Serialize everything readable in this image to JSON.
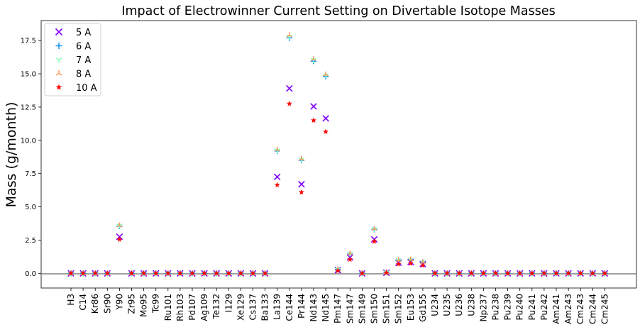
{
  "chart_data": {
    "type": "scatter",
    "title": "Impact of Electrowinner Current Setting on Divertable Isotope Masses",
    "xlabel": "",
    "ylabel": "Mass (g/month)",
    "ylim": [
      -1.1,
      19.0
    ],
    "yticks": [
      0.0,
      2.5,
      5.0,
      7.5,
      10.0,
      12.5,
      15.0,
      17.5
    ],
    "ytick_labels": [
      "0.0",
      "2.5",
      "5.0",
      "7.5",
      "10.0",
      "12.5",
      "15.0",
      "17.5"
    ],
    "zero_line": true,
    "grid": false,
    "legend_position": "top-left",
    "categories": [
      "H3",
      "C14",
      "Kr86",
      "Sr90",
      "Y90",
      "Zr95",
      "Mo95",
      "Tc99",
      "Ru101",
      "Rh103",
      "Pd107",
      "Ag109",
      "Te132",
      "I129",
      "Xe129",
      "Cs137",
      "Ba133",
      "La139",
      "Ce144",
      "Pr144",
      "Nd143",
      "Nd145",
      "Pm147",
      "Sm147",
      "Sm149",
      "Sm150",
      "Sm151",
      "Sm152",
      "Eu153",
      "Gd155",
      "U234",
      "U235",
      "U236",
      "U238",
      "Np237",
      "Pu238",
      "Pu239",
      "Pu240",
      "Pu241",
      "Pu242",
      "Am241",
      "Am243",
      "Cm243",
      "Cm244",
      "Cm245"
    ],
    "series": [
      {
        "name": "5 A",
        "color": "#7f00ff",
        "marker": "x",
        "values": [
          0,
          0,
          0,
          0,
          2.75,
          0,
          0,
          0,
          0,
          0,
          0,
          0,
          0,
          0,
          0,
          0,
          0,
          7.25,
          13.9,
          6.7,
          12.55,
          11.65,
          0.25,
          1.2,
          0,
          2.55,
          0.05,
          0.8,
          0.85,
          0.7,
          0,
          0,
          0,
          0,
          0,
          0,
          0,
          0,
          0,
          0,
          0,
          0,
          0,
          0,
          0
        ]
      },
      {
        "name": "6 A",
        "color": "#1996f3",
        "marker": "plus",
        "values": [
          0,
          0,
          0,
          0,
          3.55,
          0,
          0,
          0,
          0,
          0,
          0,
          0,
          0,
          0,
          0,
          0,
          0,
          9.2,
          17.7,
          8.5,
          15.95,
          14.8,
          0.3,
          1.45,
          0,
          3.3,
          0.08,
          0.95,
          1.0,
          0.8,
          0,
          0,
          0,
          0,
          0,
          0,
          0,
          0,
          0,
          0,
          0,
          0,
          0,
          0,
          0
        ]
      },
      {
        "name": "7 A",
        "color": "#80ffb4",
        "marker": "tri_down",
        "values": [
          0,
          0,
          0,
          0,
          3.6,
          0,
          0,
          0,
          0,
          0,
          0,
          0,
          0,
          0,
          0,
          0,
          0,
          9.25,
          17.8,
          8.55,
          16.05,
          14.9,
          0.3,
          1.5,
          0,
          3.35,
          0.08,
          1.0,
          1.05,
          0.85,
          0,
          0,
          0,
          0,
          0,
          0,
          0,
          0,
          0,
          0,
          0,
          0,
          0,
          0,
          0
        ]
      },
      {
        "name": "8 A",
        "color": "#ff964f",
        "marker": "tri_up",
        "values": [
          0,
          0,
          0,
          0,
          3.6,
          0,
          0,
          0,
          0,
          0,
          0,
          0,
          0,
          0,
          0,
          0,
          0,
          9.3,
          17.9,
          8.6,
          16.1,
          14.95,
          0.3,
          1.5,
          0,
          3.35,
          0.08,
          1.0,
          1.05,
          0.85,
          0,
          0,
          0,
          0,
          0,
          0,
          0,
          0,
          0,
          0,
          0,
          0,
          0,
          0,
          0
        ]
      },
      {
        "name": "10 A",
        "color": "#ff0000",
        "marker": "star",
        "values": [
          0,
          0,
          0,
          0,
          2.55,
          0,
          0,
          0,
          0,
          0,
          0,
          0,
          0,
          0,
          0,
          0,
          0,
          6.65,
          12.75,
          6.1,
          11.5,
          10.65,
          0.2,
          1.05,
          0,
          2.4,
          0.05,
          0.7,
          0.75,
          0.6,
          0,
          0,
          0,
          0,
          0,
          0,
          0,
          0,
          0,
          0,
          0,
          0,
          0,
          0,
          0
        ]
      }
    ]
  }
}
